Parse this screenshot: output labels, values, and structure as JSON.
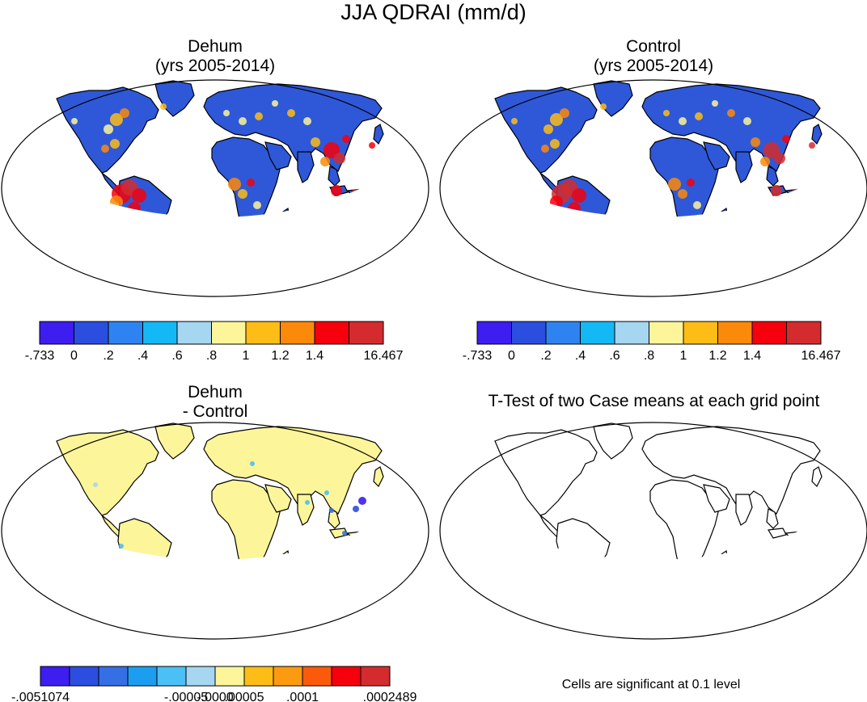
{
  "title": "JJA QDRAI (mm/d)",
  "panels": [
    {
      "id": "dehum",
      "title_line1": "Dehum",
      "title_line2": "(yrs 2005-2014)",
      "colorbar": {
        "colors": [
          "#3d1df0",
          "#2b4ee0",
          "#2f83f0",
          "#14b8f5",
          "#a6d6f0",
          "#fdf59a",
          "#fdbd16",
          "#fc8a0a",
          "#f5000c",
          "#d42c2e"
        ],
        "tick_labels": [
          "-.733",
          "0",
          ".2",
          ".4",
          ".6",
          ".8",
          "1",
          "1.2",
          "1.4",
          "16.467"
        ]
      }
    },
    {
      "id": "control",
      "title_line1": "Control",
      "title_line2": "(yrs 2005-2014)",
      "colorbar": {
        "colors": [
          "#3d1df0",
          "#2b4ee0",
          "#2f83f0",
          "#14b8f5",
          "#a6d6f0",
          "#fdf59a",
          "#fdbd16",
          "#fc8a0a",
          "#f5000c",
          "#d42c2e"
        ],
        "tick_labels": [
          "-.733",
          "0",
          ".2",
          ".4",
          ".6",
          ".8",
          "1",
          "1.2",
          "1.4",
          "16.467"
        ]
      }
    },
    {
      "id": "difference",
      "title_line1": "Dehum",
      "title_line2": "- Control",
      "colorbar": {
        "colors": [
          "#3d1df0",
          "#2b4ee0",
          "#356fe6",
          "#1c9ef0",
          "#4bc0f5",
          "#a6d6f0",
          "#fdf59a",
          "#fdbd16",
          "#fc9a10",
          "#fb5a0a",
          "#f5000c",
          "#d42c2e"
        ],
        "tick_labels": [
          "-.0051074",
          "-.00005",
          "-.0000",
          ".00005",
          ".0001",
          ".0002489"
        ]
      }
    },
    {
      "id": "ttest",
      "title": "T-Test of two Case means at each grid point",
      "footnote": "Cells are significant at 0.1 level"
    }
  ],
  "map_colors": {
    "ocean": "#ffffff",
    "land_main": "#2f58d8",
    "land_diff": "#fdf59a",
    "antarctica_diff": "#fdf59a",
    "coast": "#000000"
  }
}
